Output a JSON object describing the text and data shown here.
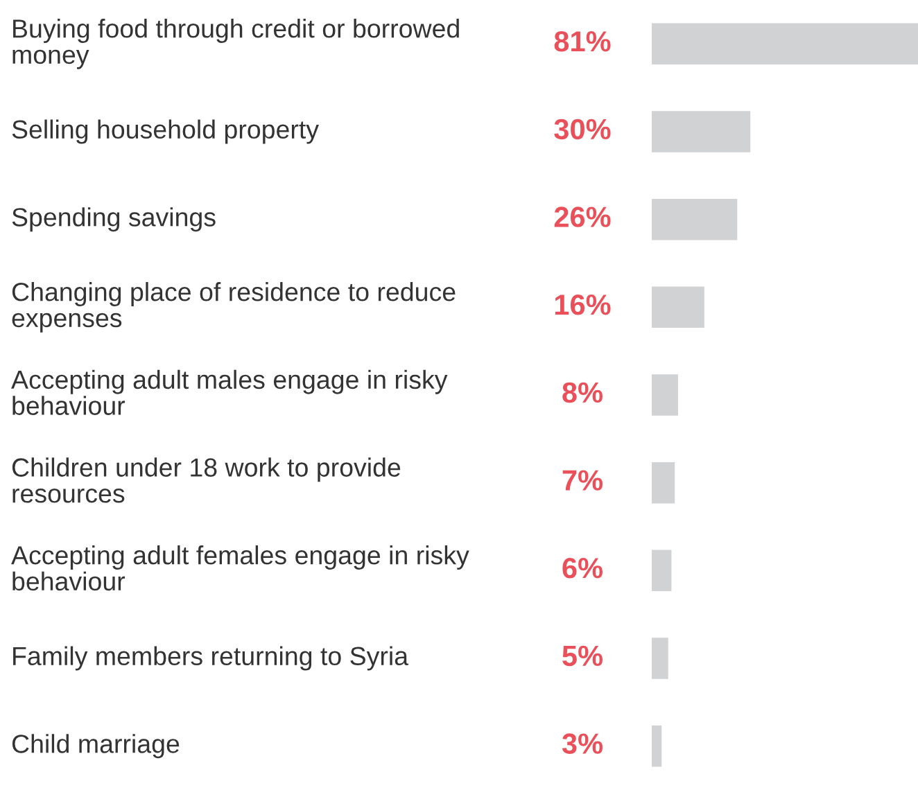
{
  "chart_data": {
    "type": "bar",
    "orientation": "horizontal",
    "categories": [
      "Buying food through credit or borrowed money",
      "Selling household property",
      "Spending savings",
      "Changing place of residence to reduce expenses",
      "Accepting adult males engage in risky behaviour",
      "Children under 18 work to provide resources",
      "Accepting adult females engage in risky behaviour",
      "Family members returning to Syria",
      "Child marriage"
    ],
    "values": [
      81,
      30,
      26,
      16,
      8,
      7,
      6,
      5,
      3
    ],
    "value_labels": [
      "81%",
      "30%",
      "26%",
      "16%",
      "8%",
      "7%",
      "6%",
      "5%",
      "3%"
    ],
    "color": "#d1d2d4"
  }
}
